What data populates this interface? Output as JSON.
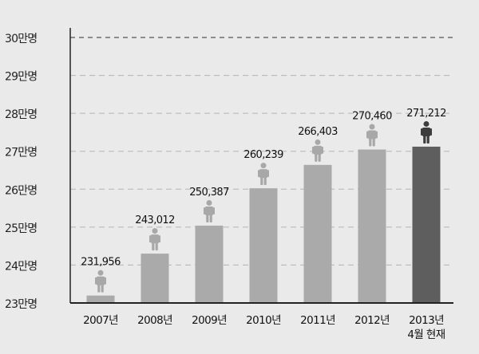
{
  "chart_data": {
    "type": "bar",
    "title": "",
    "xlabel": "",
    "ylabel": "",
    "ylim": [
      230000,
      300000
    ],
    "grid": true,
    "y_ticks": [
      {
        "value": 230000,
        "label": "23만명"
      },
      {
        "value": 240000,
        "label": "24만명"
      },
      {
        "value": 250000,
        "label": "25만명"
      },
      {
        "value": 260000,
        "label": "26만명"
      },
      {
        "value": 270000,
        "label": "27만명"
      },
      {
        "value": 280000,
        "label": "28만명"
      },
      {
        "value": 290000,
        "label": "29만명"
      },
      {
        "value": 300000,
        "label": "30만명"
      }
    ],
    "categories": [
      "2007년",
      "2008년",
      "2009년",
      "2010년",
      "2011년",
      "2012년",
      "2013년\n4월 현재"
    ],
    "values": [
      231956,
      243012,
      250387,
      260239,
      266403,
      270460,
      271212
    ],
    "value_labels": [
      "231,956",
      "243,012",
      "250,387",
      "260,239",
      "266,403",
      "270,460",
      "271,212"
    ],
    "highlight_index": 6,
    "colors": {
      "bar": "#aaaaaa",
      "bar_highlight": "#5e5e5e",
      "person": "#a8a8a8",
      "person_highlight": "#3c3c3c",
      "grid": "#b4b4b4",
      "axis": "#222222",
      "background": "#eaeaea"
    },
    "icon": "person-icon"
  }
}
